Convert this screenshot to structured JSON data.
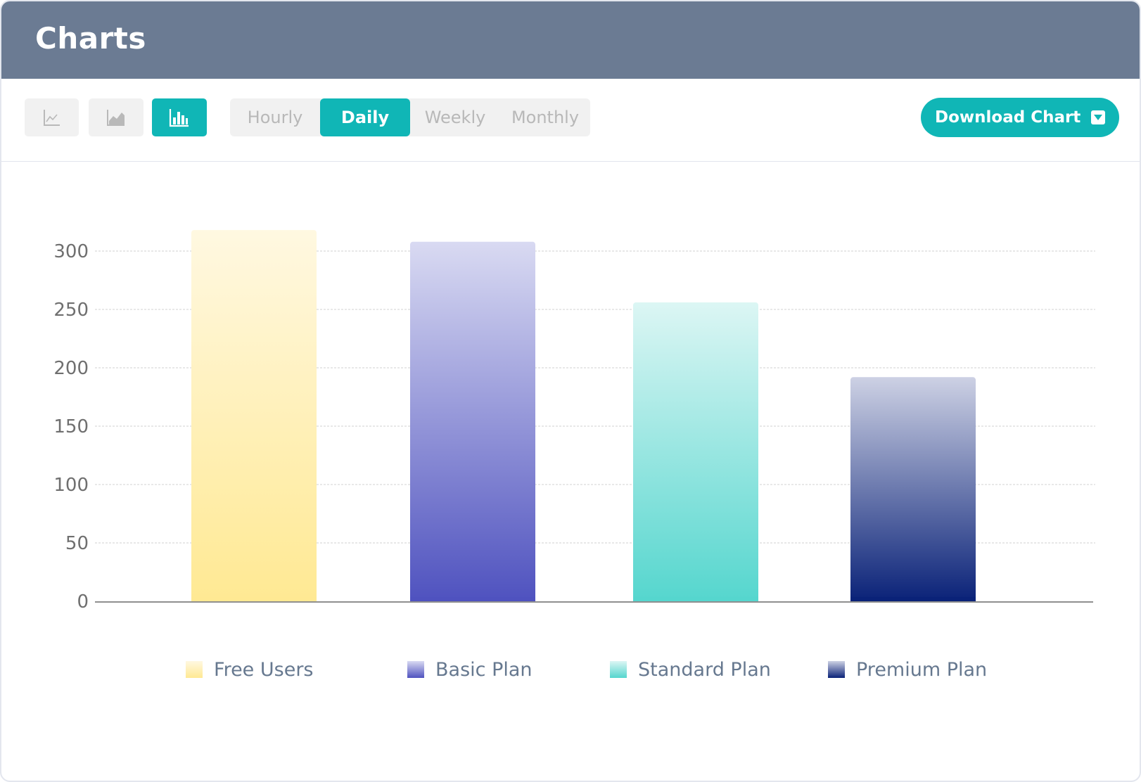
{
  "header": {
    "title": "Charts"
  },
  "toolbar": {
    "chart_types": [
      {
        "name": "line-chart",
        "icon": "line-chart-icon",
        "active": false
      },
      {
        "name": "area-chart",
        "icon": "area-chart-icon",
        "active": false
      },
      {
        "name": "bar-chart",
        "icon": "bar-chart-icon",
        "active": true
      }
    ],
    "ranges": [
      "Hourly",
      "Daily",
      "Weekly",
      "Monthly"
    ],
    "active_range": "Daily",
    "download_label": "Download Chart",
    "download_icon": "dropdown-arrow-icon"
  },
  "colors": {
    "accent": "#10b6b6",
    "header": "#6b7b93",
    "free_users": [
      "#fff8e1",
      "#ffe993"
    ],
    "basic_plan": [
      "#d9daf2",
      "#4f52bf"
    ],
    "standard_plan": [
      "#dcf6f4",
      "#55d6ce"
    ],
    "premium_plan": [
      "#cdd1e4",
      "#0a2278"
    ]
  },
  "chart_data": {
    "type": "bar",
    "categories": [
      "Free Users",
      "Basic Plan",
      "Standard Plan",
      "Premium Plan"
    ],
    "values": [
      318,
      308,
      256,
      192
    ],
    "title": "",
    "xlabel": "",
    "ylabel": "",
    "ylim": [
      0,
      300
    ],
    "yticks": [
      0,
      50,
      100,
      150,
      200,
      250,
      300
    ],
    "grid": true,
    "legend": "bottom",
    "legend_entries": [
      "Free Users",
      "Basic Plan",
      "Standard Plan",
      "Premium Plan"
    ]
  }
}
